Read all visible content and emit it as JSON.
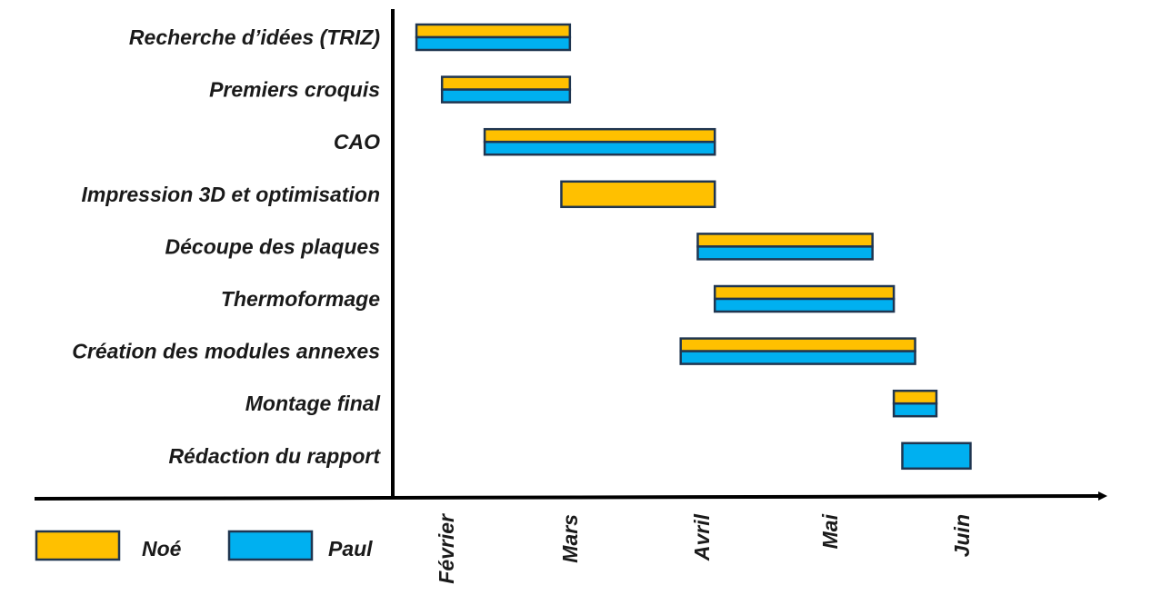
{
  "chart_data": {
    "type": "gantt",
    "title": "",
    "xlabel": "",
    "ylabel": "",
    "x_ticks": [
      "Février",
      "Mars",
      "Avril",
      "Mai",
      "Juin"
    ],
    "xlim": [
      "2024-01-22",
      "2024-06-27"
    ],
    "tick_dates": [
      "2024-02-01",
      "2024-03-01",
      "2024-04-01",
      "2024-05-01",
      "2024-06-01"
    ],
    "series": [
      {
        "name": "Noé",
        "color": "#FFC000"
      },
      {
        "name": "Paul",
        "color": "#00B0F0"
      }
    ],
    "tasks": [
      {
        "label": "Recherche d’idées (TRIZ)",
        "start": "2024-01-25",
        "end": "2024-03-01",
        "assignees": [
          "Noé",
          "Paul"
        ]
      },
      {
        "label": "Premiers croquis",
        "start": "2024-01-31",
        "end": "2024-03-01",
        "assignees": [
          "Noé",
          "Paul"
        ]
      },
      {
        "label": "CAO",
        "start": "2024-02-10",
        "end": "2024-04-04",
        "assignees": [
          "Noé",
          "Paul"
        ]
      },
      {
        "label": "Impression 3D et optimisation",
        "start": "2024-02-28",
        "end": "2024-04-04",
        "assignees": [
          "Noé"
        ]
      },
      {
        "label": "Découpe des plaques",
        "start": "2024-03-31",
        "end": "2024-05-11",
        "assignees": [
          "Noé",
          "Paul"
        ]
      },
      {
        "label": "Thermoformage",
        "start": "2024-04-04",
        "end": "2024-05-16",
        "assignees": [
          "Noé",
          "Paul"
        ]
      },
      {
        "label": "Création des modules annexes",
        "start": "2024-03-27",
        "end": "2024-05-21",
        "assignees": [
          "Noé",
          "Paul"
        ]
      },
      {
        "label": "Montage final",
        "start": "2024-05-16",
        "end": "2024-05-26",
        "assignees": [
          "Noé",
          "Paul"
        ]
      },
      {
        "label": "Rédaction du rapport",
        "start": "2024-05-18",
        "end": "2024-06-03",
        "assignees": [
          "Paul"
        ]
      }
    ],
    "legend": "bottom-left",
    "grid": false
  }
}
